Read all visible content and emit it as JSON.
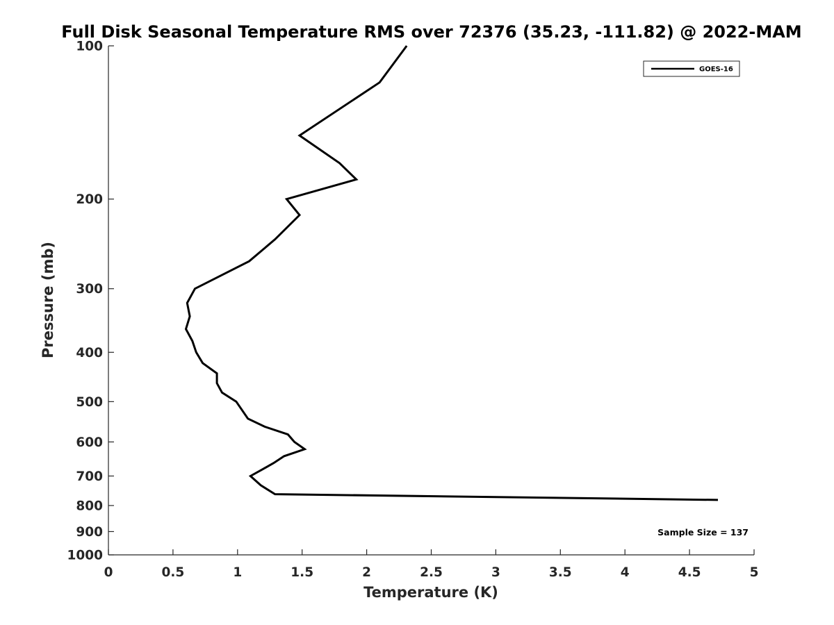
{
  "chart_data": {
    "type": "line",
    "title": "Full Disk Seasonal Temperature RMS over 72376 (35.23, -111.82) @ 2022-MAM",
    "xlabel": "Temperature (K)",
    "ylabel": "Pressure (mb)",
    "xlim": [
      0,
      5
    ],
    "ylim": [
      1000,
      100
    ],
    "y_scale": "log",
    "y_reversed": true,
    "x_ticks": [
      0,
      0.5,
      1,
      1.5,
      2,
      2.5,
      3,
      3.5,
      4,
      4.5,
      5
    ],
    "x_tick_labels": [
      "0",
      "0.5",
      "1",
      "1.5",
      "2",
      "2.5",
      "3",
      "3.5",
      "4",
      "4.5",
      "5"
    ],
    "y_ticks": [
      100,
      200,
      300,
      400,
      500,
      600,
      700,
      800,
      900,
      1000
    ],
    "y_tick_labels": [
      "100",
      "200",
      "300",
      "400",
      "500",
      "600",
      "700",
      "800",
      "900",
      "1000"
    ],
    "grid": false,
    "legend_position": "top-right",
    "series": [
      {
        "name": "GOES-16",
        "color": "#000000",
        "x": [
          2.31,
          2.1,
          1.48,
          1.79,
          1.92,
          1.38,
          1.48,
          1.29,
          1.09,
          0.67,
          0.61,
          0.63,
          0.6,
          0.65,
          0.68,
          0.73,
          0.84,
          0.84,
          0.88,
          0.99,
          1.08,
          1.21,
          1.39,
          1.44,
          1.52,
          1.36,
          1.28,
          1.19,
          1.1,
          1.18,
          1.29,
          4.72
        ],
        "y": [
          100,
          118,
          150,
          170,
          183,
          200,
          215,
          240,
          265,
          300,
          320,
          340,
          360,
          380,
          400,
          420,
          440,
          460,
          480,
          500,
          540,
          560,
          580,
          600,
          620,
          640,
          660,
          680,
          700,
          730,
          760,
          780
        ]
      }
    ],
    "annotations": [
      "Sample Size = 137"
    ]
  }
}
